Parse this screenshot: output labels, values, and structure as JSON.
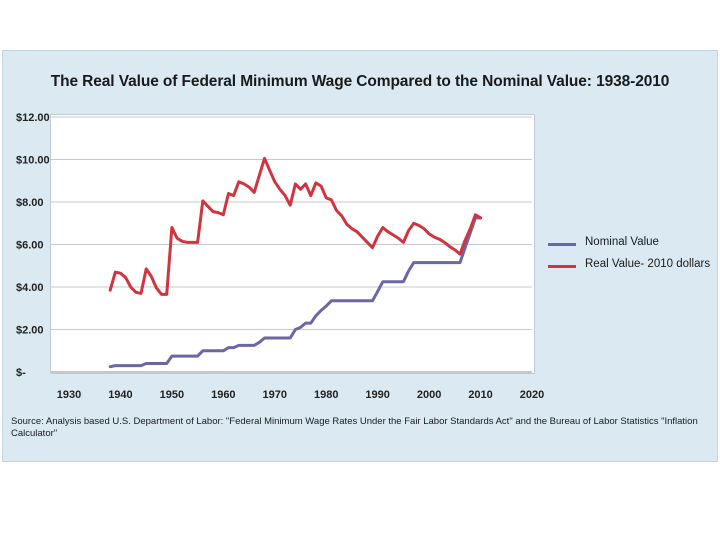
{
  "chart_data": {
    "type": "line",
    "title": "The Real Value of Federal Minimum Wage Compared to the Nominal Value: 1938-2010",
    "xlabel": "",
    "ylabel": "",
    "xlim": [
      1930,
      2020
    ],
    "ylim": [
      0,
      12
    ],
    "x_ticks": [
      1930,
      1940,
      1950,
      1960,
      1970,
      1980,
      1990,
      2000,
      2010,
      2020
    ],
    "x_tick_labels": [
      "1930",
      "1940",
      "1950",
      "1960",
      "1970",
      "1980",
      "1990",
      "2000",
      "2010",
      "2020"
    ],
    "y_ticks": [
      0,
      2,
      4,
      6,
      8,
      10,
      12
    ],
    "y_tick_labels": [
      "$-",
      "$2.00",
      "$4.00",
      "$6.00",
      "$8.00",
      "$10.00",
      "$12.00"
    ],
    "legend_position": "right",
    "series": [
      {
        "name": "Nominal Value",
        "color": "#6b67a6",
        "x": [
          1938,
          1939,
          1940,
          1944,
          1945,
          1949,
          1950,
          1955,
          1956,
          1960,
          1961,
          1962,
          1963,
          1966,
          1967,
          1968,
          1973,
          1974,
          1975,
          1976,
          1977,
          1978,
          1979,
          1980,
          1981,
          1989,
          1990,
          1991,
          1995,
          1996,
          1997,
          2006,
          2007,
          2008,
          2009,
          2010
        ],
        "values": [
          0.25,
          0.3,
          0.3,
          0.3,
          0.4,
          0.4,
          0.75,
          0.75,
          1.0,
          1.0,
          1.15,
          1.15,
          1.25,
          1.25,
          1.4,
          1.6,
          1.6,
          2.0,
          2.1,
          2.3,
          2.3,
          2.65,
          2.9,
          3.1,
          3.35,
          3.35,
          3.8,
          4.25,
          4.25,
          4.75,
          5.15,
          5.15,
          5.85,
          6.55,
          7.25,
          7.25
        ]
      },
      {
        "name": "Real Value- 2010 dollars",
        "color": "#d0353f",
        "x": [
          1938,
          1939,
          1940,
          1941,
          1942,
          1943,
          1944,
          1945,
          1946,
          1947,
          1948,
          1949,
          1950,
          1951,
          1952,
          1953,
          1954,
          1955,
          1956,
          1957,
          1958,
          1959,
          1960,
          1961,
          1962,
          1963,
          1964,
          1965,
          1966,
          1967,
          1968,
          1969,
          1970,
          1971,
          1972,
          1973,
          1974,
          1975,
          1976,
          1977,
          1978,
          1979,
          1980,
          1981,
          1982,
          1983,
          1984,
          1985,
          1986,
          1987,
          1988,
          1989,
          1990,
          1991,
          1992,
          1993,
          1994,
          1995,
          1996,
          1997,
          1998,
          1999,
          2000,
          2001,
          2002,
          2003,
          2004,
          2005,
          2006,
          2007,
          2008,
          2009,
          2010
        ],
        "values": [
          3.85,
          4.7,
          4.65,
          4.45,
          4.0,
          3.75,
          3.7,
          4.85,
          4.5,
          3.95,
          3.65,
          3.65,
          6.8,
          6.3,
          6.15,
          6.1,
          6.1,
          6.1,
          8.05,
          7.8,
          7.55,
          7.5,
          7.4,
          8.4,
          8.3,
          8.95,
          8.85,
          8.7,
          8.45,
          9.25,
          10.05,
          9.5,
          8.95,
          8.6,
          8.3,
          7.85,
          8.85,
          8.6,
          8.85,
          8.3,
          8.9,
          8.75,
          8.2,
          8.1,
          7.6,
          7.35,
          6.95,
          6.75,
          6.6,
          6.35,
          6.1,
          5.85,
          6.4,
          6.8,
          6.6,
          6.45,
          6.3,
          6.1,
          6.65,
          7.0,
          6.9,
          6.75,
          6.5,
          6.35,
          6.25,
          6.1,
          5.9,
          5.75,
          5.55,
          6.2,
          6.75,
          7.4,
          7.25
        ]
      }
    ],
    "source_note": "Source: Analysis based U.S. Department of Labor: \"Federal Minimum Wage Rates Under the Fair Labor Standards Act\" and the Bureau of Labor Statistics \"Inflation Calculator\""
  }
}
